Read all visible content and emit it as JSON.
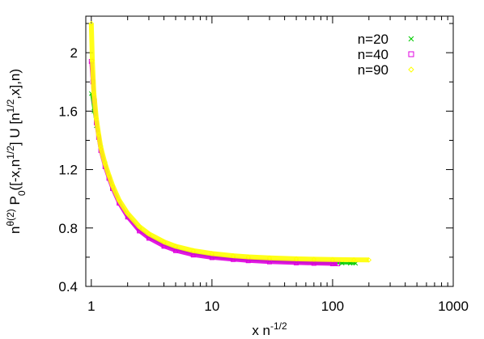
{
  "chart_data": {
    "type": "scatter",
    "title": "",
    "xlabel": {
      "base": "x n",
      "exp": "-1/2"
    },
    "ylabel": {
      "parts": [
        {
          "text": "n"
        },
        {
          "text": "θ(2)",
          "sup": true
        },
        {
          "text": " P"
        },
        {
          "text": "0",
          "sub": true
        },
        {
          "text": "([-x,n"
        },
        {
          "text": "1/2",
          "sup": true
        },
        {
          "text": "] U [n"
        },
        {
          "text": "1/2",
          "sup": true
        },
        {
          "text": ",x],n)"
        }
      ]
    },
    "x_scale": "log",
    "xlim": [
      0.9,
      1000
    ],
    "ylim": [
      0.4,
      2.25
    ],
    "x_ticks": [
      {
        "value": 1,
        "label": "1"
      },
      {
        "value": 10,
        "label": "10"
      },
      {
        "value": 100,
        "label": "100"
      },
      {
        "value": 1000,
        "label": "1000"
      }
    ],
    "y_ticks": [
      {
        "value": 0.4,
        "label": "0.4"
      },
      {
        "value": 0.8,
        "label": "0.8"
      },
      {
        "value": 1.2,
        "label": "1.2"
      },
      {
        "value": 1.6,
        "label": "1.6"
      },
      {
        "value": 2.0,
        "label": "2"
      }
    ],
    "grid": false,
    "legend_position": "top-right",
    "series": [
      {
        "name": "n=20",
        "marker": "cross",
        "color": "#00cc00",
        "x": [
          1.0,
          1.05,
          1.1,
          1.2,
          1.3,
          1.5,
          1.7,
          2.0,
          2.5,
          3.0,
          4.0,
          5.0,
          7.0,
          10.0,
          15.0,
          20.0,
          30.0,
          50.0,
          70.0,
          100.0,
          120.0,
          140.0,
          155.0
        ],
        "y": [
          1.72,
          1.6,
          1.5,
          1.35,
          1.24,
          1.08,
          0.98,
          0.88,
          0.79,
          0.74,
          0.685,
          0.655,
          0.625,
          0.605,
          0.59,
          0.583,
          0.575,
          0.567,
          0.563,
          0.56,
          0.559,
          0.558,
          0.558
        ]
      },
      {
        "name": "n=40",
        "marker": "square",
        "color": "#e000e0",
        "x": [
          1.0,
          1.03,
          1.06,
          1.1,
          1.15,
          1.2,
          1.3,
          1.4,
          1.5,
          1.7,
          2.0,
          2.5,
          3.0,
          4.0,
          5.0,
          7.0,
          10.0,
          15.0,
          20.0,
          30.0,
          50.0,
          70.0,
          100.0,
          110.0
        ],
        "y": [
          1.94,
          1.8,
          1.67,
          1.52,
          1.42,
          1.33,
          1.22,
          1.14,
          1.07,
          0.97,
          0.875,
          0.78,
          0.73,
          0.675,
          0.645,
          0.615,
          0.597,
          0.584,
          0.576,
          0.568,
          0.561,
          0.558,
          0.555,
          0.555
        ]
      },
      {
        "name": "n=90",
        "marker": "diamond",
        "color": "#ffff00",
        "x": [
          1.0,
          1.02,
          1.05,
          1.1,
          1.15,
          1.2,
          1.3,
          1.4,
          1.5,
          1.7,
          2.0,
          2.5,
          3.0,
          4.0,
          5.0,
          7.0,
          10.0,
          15.0,
          20.0,
          30.0,
          50.0,
          70.0,
          100.0,
          150.0,
          200.0
        ],
        "y": [
          2.2,
          1.95,
          1.72,
          1.55,
          1.44,
          1.35,
          1.24,
          1.16,
          1.09,
          0.99,
          0.9,
          0.81,
          0.76,
          0.705,
          0.675,
          0.645,
          0.625,
          0.61,
          0.602,
          0.595,
          0.589,
          0.586,
          0.584,
          0.582,
          0.581
        ]
      }
    ]
  }
}
